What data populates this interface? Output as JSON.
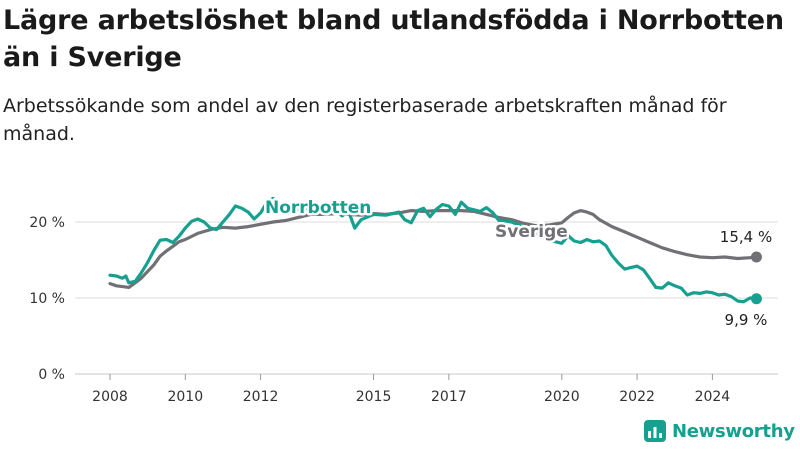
{
  "title": "Lägre arbetslöshet bland utlandsfödda i Norrbotten än i Sverige",
  "subtitle": "Arbetssökande som andel av den registerbaserade arbetskraften månad för månad.",
  "brand": "Newsworthy",
  "colors": {
    "norrbotten": "#17a08f",
    "sverige": "#717075",
    "grid": "#dcdcdc",
    "brand": "#16a08f"
  },
  "chart_data": {
    "type": "line",
    "xlim": [
      2007.5,
      2025.5
    ],
    "ylim": [
      0,
      22
    ],
    "y_ticks": [
      0,
      10,
      20
    ],
    "y_tick_labels": [
      "0 %",
      "10 %",
      "20 %"
    ],
    "x_ticks": [
      2008,
      2010,
      2012,
      2015,
      2017,
      2020,
      2022,
      2024
    ],
    "x_tick_labels": [
      "2008",
      "2010",
      "2012",
      "2015",
      "2017",
      "2020",
      "2022",
      "2024"
    ],
    "grid": true,
    "series": [
      {
        "name": "Norrbotten",
        "end_label": "9,9 %",
        "points": [
          [
            2008.0,
            13.0
          ],
          [
            2008.17,
            12.9
          ],
          [
            2008.33,
            12.6
          ],
          [
            2008.42,
            12.9
          ],
          [
            2008.5,
            12.0
          ],
          [
            2008.67,
            12.2
          ],
          [
            2008.83,
            13.3
          ],
          [
            2009.0,
            14.7
          ],
          [
            2009.17,
            16.3
          ],
          [
            2009.33,
            17.6
          ],
          [
            2009.5,
            17.7
          ],
          [
            2009.67,
            17.3
          ],
          [
            2009.83,
            18.1
          ],
          [
            2010.0,
            19.2
          ],
          [
            2010.17,
            20.1
          ],
          [
            2010.33,
            20.4
          ],
          [
            2010.5,
            20.0
          ],
          [
            2010.67,
            19.2
          ],
          [
            2010.83,
            19.0
          ],
          [
            2011.0,
            20.0
          ],
          [
            2011.17,
            21.0
          ],
          [
            2011.33,
            22.1
          ],
          [
            2011.5,
            21.8
          ],
          [
            2011.67,
            21.3
          ],
          [
            2011.83,
            20.4
          ],
          [
            2012.0,
            21.2
          ],
          [
            2012.17,
            22.6
          ],
          [
            2012.33,
            23.1
          ],
          [
            2012.5,
            22.4
          ],
          [
            2012.67,
            21.6
          ],
          [
            2013.0,
            21.6
          ],
          [
            2013.33,
            21.8
          ],
          [
            2013.67,
            21.7
          ],
          [
            2014.0,
            21.3
          ],
          [
            2014.17,
            20.8
          ],
          [
            2014.33,
            21.5
          ],
          [
            2014.5,
            19.2
          ],
          [
            2014.67,
            20.3
          ],
          [
            2015.0,
            21.0
          ],
          [
            2015.33,
            20.9
          ],
          [
            2015.67,
            21.3
          ],
          [
            2015.83,
            20.3
          ],
          [
            2016.0,
            19.9
          ],
          [
            2016.17,
            21.5
          ],
          [
            2016.33,
            21.8
          ],
          [
            2016.5,
            20.7
          ],
          [
            2016.67,
            21.7
          ],
          [
            2016.83,
            22.3
          ],
          [
            2017.0,
            22.1
          ],
          [
            2017.17,
            21.0
          ],
          [
            2017.33,
            22.6
          ],
          [
            2017.5,
            21.8
          ],
          [
            2017.67,
            21.6
          ],
          [
            2017.83,
            21.4
          ],
          [
            2018.0,
            21.9
          ],
          [
            2018.17,
            21.2
          ],
          [
            2018.33,
            20.2
          ],
          [
            2018.67,
            20.0
          ],
          [
            2019.0,
            19.3
          ],
          [
            2019.33,
            18.5
          ],
          [
            2019.67,
            17.6
          ],
          [
            2020.0,
            17.2
          ],
          [
            2020.17,
            18.2
          ],
          [
            2020.33,
            17.5
          ],
          [
            2020.5,
            17.3
          ],
          [
            2020.67,
            17.7
          ],
          [
            2020.83,
            17.4
          ],
          [
            2021.0,
            17.5
          ],
          [
            2021.17,
            16.9
          ],
          [
            2021.33,
            15.6
          ],
          [
            2021.5,
            14.6
          ],
          [
            2021.67,
            13.8
          ],
          [
            2021.83,
            14.0
          ],
          [
            2022.0,
            14.2
          ],
          [
            2022.17,
            13.7
          ],
          [
            2022.33,
            12.6
          ],
          [
            2022.5,
            11.4
          ],
          [
            2022.67,
            11.3
          ],
          [
            2022.83,
            12.0
          ],
          [
            2023.0,
            11.6
          ],
          [
            2023.17,
            11.3
          ],
          [
            2023.33,
            10.4
          ],
          [
            2023.5,
            10.7
          ],
          [
            2023.67,
            10.6
          ],
          [
            2023.83,
            10.8
          ],
          [
            2024.0,
            10.7
          ],
          [
            2024.17,
            10.4
          ],
          [
            2024.33,
            10.5
          ],
          [
            2024.5,
            10.2
          ],
          [
            2024.67,
            9.6
          ],
          [
            2024.83,
            9.5
          ],
          [
            2025.0,
            10.0
          ],
          [
            2025.17,
            9.9
          ]
        ]
      },
      {
        "name": "Sverige",
        "end_label": "15,4 %",
        "points": [
          [
            2008.0,
            11.9
          ],
          [
            2008.17,
            11.6
          ],
          [
            2008.33,
            11.5
          ],
          [
            2008.5,
            11.4
          ],
          [
            2008.67,
            12.0
          ],
          [
            2008.83,
            12.6
          ],
          [
            2009.0,
            13.5
          ],
          [
            2009.17,
            14.4
          ],
          [
            2009.33,
            15.5
          ],
          [
            2009.5,
            16.2
          ],
          [
            2009.67,
            16.8
          ],
          [
            2009.83,
            17.4
          ],
          [
            2010.0,
            17.7
          ],
          [
            2010.33,
            18.5
          ],
          [
            2010.67,
            19.0
          ],
          [
            2011.0,
            19.3
          ],
          [
            2011.33,
            19.2
          ],
          [
            2011.67,
            19.4
          ],
          [
            2012.0,
            19.7
          ],
          [
            2012.33,
            20.0
          ],
          [
            2012.67,
            20.2
          ],
          [
            2013.0,
            20.6
          ],
          [
            2013.33,
            21.0
          ],
          [
            2013.67,
            21.0
          ],
          [
            2014.0,
            21.1
          ],
          [
            2014.33,
            21.0
          ],
          [
            2014.67,
            20.9
          ],
          [
            2015.0,
            21.1
          ],
          [
            2015.33,
            21.0
          ],
          [
            2015.67,
            21.2
          ],
          [
            2016.0,
            21.5
          ],
          [
            2016.33,
            21.4
          ],
          [
            2016.67,
            21.5
          ],
          [
            2017.0,
            21.5
          ],
          [
            2017.33,
            21.5
          ],
          [
            2017.67,
            21.4
          ],
          [
            2018.0,
            21.0
          ],
          [
            2018.33,
            20.6
          ],
          [
            2018.67,
            20.3
          ],
          [
            2019.0,
            19.8
          ],
          [
            2019.33,
            19.5
          ],
          [
            2019.67,
            19.6
          ],
          [
            2020.0,
            19.9
          ],
          [
            2020.17,
            20.6
          ],
          [
            2020.33,
            21.2
          ],
          [
            2020.5,
            21.5
          ],
          [
            2020.67,
            21.3
          ],
          [
            2020.83,
            21.0
          ],
          [
            2021.0,
            20.3
          ],
          [
            2021.33,
            19.4
          ],
          [
            2021.67,
            18.7
          ],
          [
            2022.0,
            18.0
          ],
          [
            2022.33,
            17.3
          ],
          [
            2022.67,
            16.6
          ],
          [
            2023.0,
            16.1
          ],
          [
            2023.33,
            15.7
          ],
          [
            2023.67,
            15.4
          ],
          [
            2024.0,
            15.3
          ],
          [
            2024.33,
            15.4
          ],
          [
            2024.67,
            15.2
          ],
          [
            2025.0,
            15.3
          ],
          [
            2025.17,
            15.4
          ]
        ]
      }
    ]
  }
}
